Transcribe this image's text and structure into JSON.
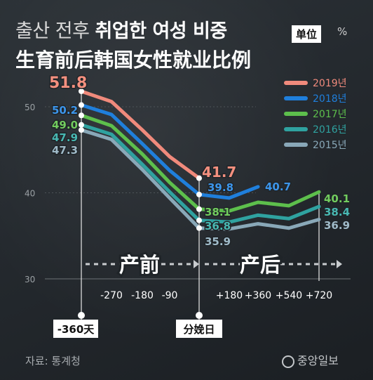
{
  "header": {
    "title_ko_part1": "출산 전후 ",
    "title_ko_part2": "취업한 여성 비중",
    "title_zh": "生育前后韩国女性就业比例",
    "unit_label": "单位",
    "unit_symbol": "%"
  },
  "footer": {
    "source": "자료: 통계청",
    "brand": "중앙일보"
  },
  "chart_data": {
    "type": "line",
    "ylim": [
      30,
      52
    ],
    "yticks": [
      30,
      40,
      50
    ],
    "x": [
      "-360天",
      "-270",
      "-180",
      "-90",
      "分娩日",
      "+180",
      "+360",
      "+540",
      "+720"
    ],
    "x_tick_labels": [
      "-270",
      "-180",
      "-90",
      "+180",
      "+360",
      "+540",
      "+720"
    ],
    "marker_labels": [
      "-360天",
      "分娩日"
    ],
    "phase_labels": [
      "产前",
      "产后"
    ],
    "series": [
      {
        "name": "2019년",
        "color": "#f08a7c",
        "values": [
          51.8,
          50.6,
          47.3,
          44.2,
          41.7,
          null,
          null,
          null,
          null
        ],
        "labels": {
          "0": "51.8",
          "4": "41.7"
        }
      },
      {
        "name": "2018년",
        "color": "#1f7fdc",
        "values": [
          50.2,
          49.1,
          45.7,
          42.6,
          39.8,
          39.4,
          40.7,
          null,
          null
        ],
        "labels": {
          "0": "50.2",
          "4": "39.8",
          "6": "40.7"
        }
      },
      {
        "name": "2017년",
        "color": "#5dbf4c",
        "values": [
          49.0,
          47.8,
          44.5,
          41.2,
          38.1,
          37.9,
          38.9,
          38.5,
          40.1
        ],
        "labels": {
          "0": "49.0",
          "4": "38.1",
          "8": "40.1"
        }
      },
      {
        "name": "2016년",
        "color": "#2fa2a0",
        "values": [
          47.9,
          46.8,
          43.3,
          40.1,
          36.8,
          36.6,
          37.4,
          37.0,
          38.4
        ],
        "labels": {
          "0": "47.9",
          "4": "36.8",
          "8": "38.4"
        }
      },
      {
        "name": "2015년",
        "color": "#89a8b8",
        "values": [
          47.3,
          46.2,
          42.7,
          39.4,
          35.9,
          35.8,
          36.4,
          35.9,
          36.9
        ],
        "labels": {
          "0": "47.3",
          "4": "35.9",
          "8": "36.9"
        }
      }
    ],
    "legend_position": "top-right",
    "grid": true
  }
}
